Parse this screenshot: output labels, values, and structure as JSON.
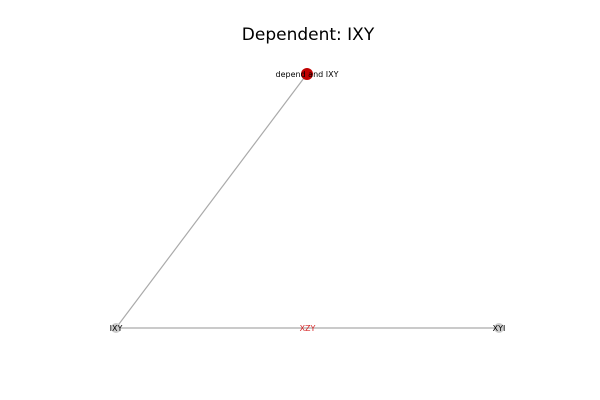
{
  "title": "Dependent: IXY",
  "colors": {
    "highlight_node": "#c00000",
    "normal_node": "#cccccc",
    "edge": "#aaaaaa",
    "edge_label": "#d62728"
  },
  "nodes": [
    {
      "id": "depend",
      "label": "depend and IXY",
      "highlight": true
    },
    {
      "id": "IXY",
      "label": "IXY",
      "highlight": false
    },
    {
      "id": "XYI",
      "label": "XYI",
      "highlight": false
    }
  ],
  "edges": [
    {
      "source": "depend",
      "target": "IXY",
      "label": ""
    },
    {
      "source": "IXY",
      "target": "XYI",
      "label": "XZY"
    }
  ]
}
